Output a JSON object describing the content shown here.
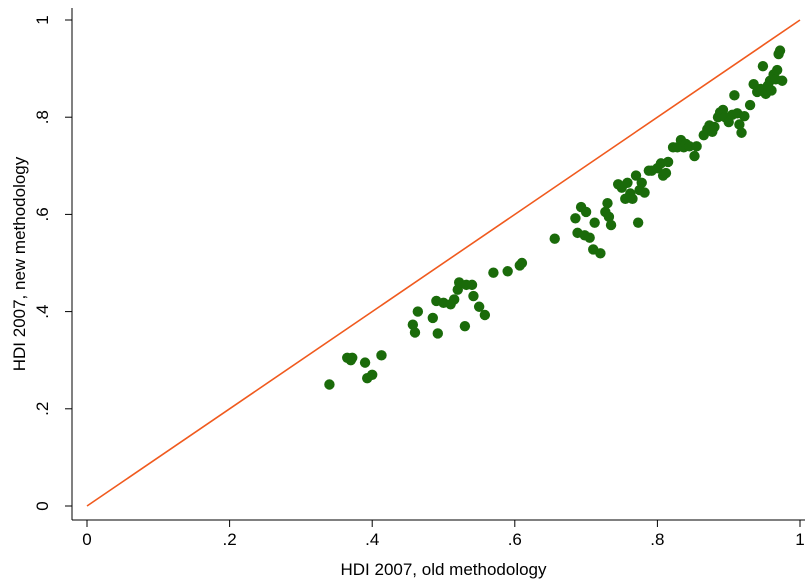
{
  "chart_data": {
    "type": "scatter",
    "xlabel": "HDI 2007, old methodology",
    "ylabel": "HDI 2007, new methodology",
    "xlim": [
      0,
      1
    ],
    "ylim": [
      0,
      1
    ],
    "x_ticks": [
      {
        "value": 0,
        "label": "0"
      },
      {
        "value": 0.2,
        "label": ".2"
      },
      {
        "value": 0.4,
        "label": ".4"
      },
      {
        "value": 0.6,
        "label": ".6"
      },
      {
        "value": 0.8,
        "label": ".8"
      },
      {
        "value": 1,
        "label": "1"
      }
    ],
    "y_ticks": [
      {
        "value": 0,
        "label": "0"
      },
      {
        "value": 0.2,
        "label": ".2"
      },
      {
        "value": 0.4,
        "label": ".4"
      },
      {
        "value": 0.6,
        "label": ".6"
      },
      {
        "value": 0.8,
        "label": ".8"
      },
      {
        "value": 1,
        "label": "1"
      }
    ],
    "grid": false,
    "legend": "none",
    "marker_color": "#1a6b0a",
    "reference_line": {
      "from": [
        0,
        0
      ],
      "to": [
        1,
        1
      ],
      "color": "#f05a1e"
    },
    "series": [
      {
        "points": [
          [
            0.34,
            0.25
          ],
          [
            0.365,
            0.305
          ],
          [
            0.37,
            0.3
          ],
          [
            0.372,
            0.305
          ],
          [
            0.39,
            0.295
          ],
          [
            0.393,
            0.263
          ],
          [
            0.4,
            0.27
          ],
          [
            0.413,
            0.31
          ],
          [
            0.457,
            0.373
          ],
          [
            0.46,
            0.357
          ],
          [
            0.464,
            0.4
          ],
          [
            0.485,
            0.387
          ],
          [
            0.49,
            0.422
          ],
          [
            0.492,
            0.355
          ],
          [
            0.5,
            0.418
          ],
          [
            0.51,
            0.415
          ],
          [
            0.515,
            0.425
          ],
          [
            0.52,
            0.445
          ],
          [
            0.522,
            0.46
          ],
          [
            0.53,
            0.37
          ],
          [
            0.532,
            0.455
          ],
          [
            0.54,
            0.455
          ],
          [
            0.542,
            0.432
          ],
          [
            0.55,
            0.41
          ],
          [
            0.558,
            0.393
          ],
          [
            0.57,
            0.48
          ],
          [
            0.59,
            0.483
          ],
          [
            0.607,
            0.495
          ],
          [
            0.61,
            0.5
          ],
          [
            0.656,
            0.55
          ],
          [
            0.685,
            0.592
          ],
          [
            0.688,
            0.562
          ],
          [
            0.693,
            0.615
          ],
          [
            0.698,
            0.557
          ],
          [
            0.7,
            0.605
          ],
          [
            0.705,
            0.552
          ],
          [
            0.71,
            0.528
          ],
          [
            0.712,
            0.583
          ],
          [
            0.72,
            0.52
          ],
          [
            0.727,
            0.605
          ],
          [
            0.73,
            0.623
          ],
          [
            0.732,
            0.595
          ],
          [
            0.735,
            0.578
          ],
          [
            0.745,
            0.662
          ],
          [
            0.75,
            0.655
          ],
          [
            0.755,
            0.632
          ],
          [
            0.758,
            0.665
          ],
          [
            0.762,
            0.643
          ],
          [
            0.765,
            0.632
          ],
          [
            0.77,
            0.68
          ],
          [
            0.773,
            0.583
          ],
          [
            0.775,
            0.65
          ],
          [
            0.778,
            0.665
          ],
          [
            0.782,
            0.645
          ],
          [
            0.788,
            0.69
          ],
          [
            0.792,
            0.69
          ],
          [
            0.8,
            0.695
          ],
          [
            0.805,
            0.705
          ],
          [
            0.808,
            0.68
          ],
          [
            0.812,
            0.685
          ],
          [
            0.815,
            0.708
          ],
          [
            0.822,
            0.738
          ],
          [
            0.828,
            0.738
          ],
          [
            0.833,
            0.753
          ],
          [
            0.837,
            0.738
          ],
          [
            0.84,
            0.745
          ],
          [
            0.845,
            0.74
          ],
          [
            0.852,
            0.72
          ],
          [
            0.855,
            0.74
          ],
          [
            0.865,
            0.763
          ],
          [
            0.87,
            0.775
          ],
          [
            0.873,
            0.783
          ],
          [
            0.877,
            0.77
          ],
          [
            0.88,
            0.78
          ],
          [
            0.885,
            0.8
          ],
          [
            0.888,
            0.81
          ],
          [
            0.892,
            0.815
          ],
          [
            0.895,
            0.8
          ],
          [
            0.9,
            0.79
          ],
          [
            0.905,
            0.805
          ],
          [
            0.908,
            0.845
          ],
          [
            0.912,
            0.808
          ],
          [
            0.915,
            0.785
          ],
          [
            0.918,
            0.768
          ],
          [
            0.922,
            0.802
          ],
          [
            0.93,
            0.825
          ],
          [
            0.935,
            0.868
          ],
          [
            0.94,
            0.852
          ],
          [
            0.945,
            0.858
          ],
          [
            0.948,
            0.905
          ],
          [
            0.952,
            0.848
          ],
          [
            0.955,
            0.865
          ],
          [
            0.958,
            0.875
          ],
          [
            0.96,
            0.855
          ],
          [
            0.963,
            0.888
          ],
          [
            0.966,
            0.878
          ],
          [
            0.968,
            0.897
          ],
          [
            0.97,
            0.93
          ],
          [
            0.972,
            0.937
          ],
          [
            0.975,
            0.875
          ]
        ]
      }
    ]
  }
}
